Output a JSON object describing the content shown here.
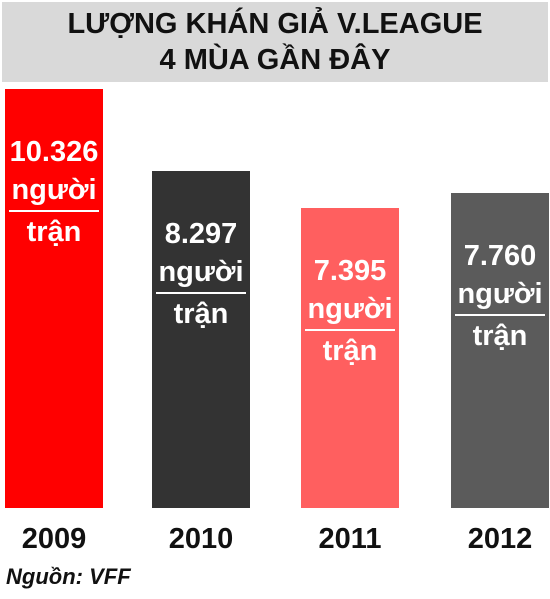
{
  "title": {
    "line1": "LƯỢNG KHÁN GIẢ V.LEAGUE",
    "line2": "4 MÙA GẦN ĐÂY"
  },
  "source": "Nguồn: VFF",
  "chart_data": {
    "type": "bar",
    "categories": [
      "2009",
      "2010",
      "2011",
      "2012"
    ],
    "values": [
      10326,
      8297,
      7395,
      7760
    ],
    "value_labels": [
      "10.326",
      "8.297",
      "7.395",
      "7.760"
    ],
    "unit_top": "người",
    "unit_bottom": "trận",
    "title": "LƯỢNG KHÁN GIẢ V.LEAGUE 4 MÙA GẦN ĐÂY",
    "xlabel": "",
    "ylabel": "",
    "ylim": [
      0,
      10326
    ],
    "grid": false,
    "legend": "none",
    "colors": [
      "#ff0000",
      "#333333",
      "#ff5f5f",
      "#5b5b5b"
    ]
  }
}
